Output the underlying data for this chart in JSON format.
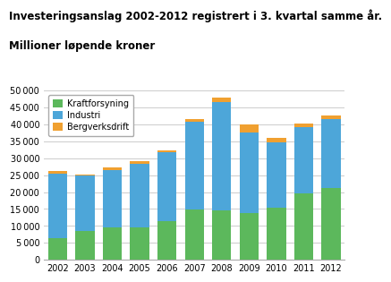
{
  "title_line1": "Investeringsanslag 2002-2012 registrert i 3. kvartal samme år.",
  "title_line2": "Millioner løpende kroner",
  "years": [
    2002,
    2003,
    2004,
    2005,
    2006,
    2007,
    2008,
    2009,
    2010,
    2011,
    2012
  ],
  "kraftforsyning": [
    6500,
    8500,
    9500,
    9500,
    11500,
    14800,
    14700,
    13800,
    15500,
    19500,
    21200
  ],
  "industri": [
    19000,
    16300,
    17000,
    18800,
    20200,
    26000,
    32000,
    23800,
    19100,
    19800,
    20500
  ],
  "bergverksdrift": [
    600,
    400,
    700,
    900,
    700,
    700,
    1100,
    2500,
    1500,
    900,
    900
  ],
  "color_kraftforsyning": "#5cb85c",
  "color_industri": "#4da6d9",
  "color_bergverksdrift": "#f0a030",
  "legend_labels": [
    "Kraftforsyning",
    "Industri",
    "Bergverksdrift"
  ],
  "ylim": [
    0,
    50000
  ],
  "yticks": [
    0,
    5000,
    10000,
    15000,
    20000,
    25000,
    30000,
    35000,
    40000,
    45000,
    50000
  ],
  "background_color": "#ffffff",
  "grid_color": "#cccccc"
}
